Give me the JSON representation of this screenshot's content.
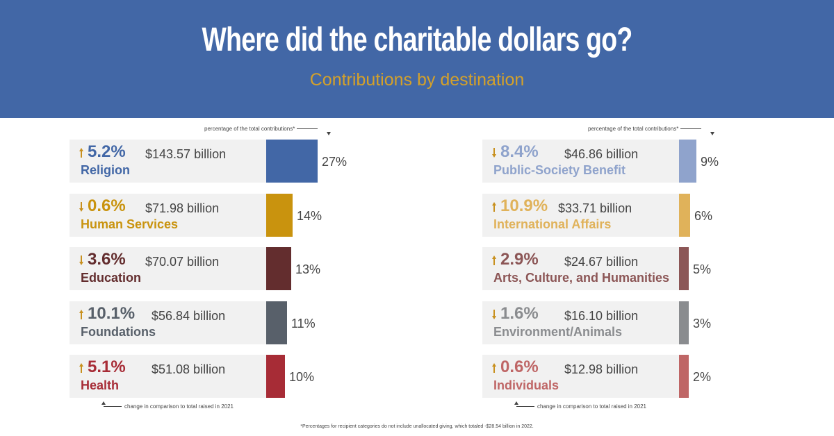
{
  "header": {
    "title": "Where did the charitable dollars go?",
    "subtitle": "Contributions by destination"
  },
  "notes": {
    "percentage_label": "percentage of the total contributions*",
    "change_label": "change in comparison to total raised in 2021",
    "footnote": "*Percentages for recipient categories do not include unallocated giving, which totaled -$28.54 billion in 2022."
  },
  "colors": {
    "banner": "#4267a6",
    "subtitle": "#d4a12a",
    "arrow": "#c8901e",
    "row_background": "#f1f1f1"
  },
  "chart_data": {
    "type": "bar",
    "title": "Where did the charitable dollars go?",
    "subtitle": "Contributions by destination",
    "unit": "percent of total contributions",
    "categories": [
      "Religion",
      "Human Services",
      "Education",
      "Foundations",
      "Health",
      "Public-Society Benefit",
      "International Affairs",
      "Arts, Culture, and Humanities",
      "Environment/Animals",
      "Individuals"
    ],
    "values": [
      27,
      14,
      13,
      11,
      10,
      9,
      6,
      5,
      3,
      2
    ],
    "items": [
      {
        "category": "Religion",
        "share": 27,
        "share_label": "27%",
        "change": "5.2%",
        "direction": "up",
        "amount": "$143.57 billion",
        "color": "#4267a6"
      },
      {
        "category": "Human Services",
        "share": 14,
        "share_label": "14%",
        "change": "0.6%",
        "direction": "down",
        "amount": "$71.98 billion",
        "color": "#c9930e"
      },
      {
        "category": "Education",
        "share": 13,
        "share_label": "13%",
        "change": "3.6%",
        "direction": "down",
        "amount": "$70.07 billion",
        "color": "#632d2e"
      },
      {
        "category": "Foundations",
        "share": 11,
        "share_label": "11%",
        "change": "10.1%",
        "direction": "up",
        "amount": "$56.84 billion",
        "color": "#58606a"
      },
      {
        "category": "Health",
        "share": 10,
        "share_label": "10%",
        "change": "5.1%",
        "direction": "up",
        "amount": "$51.08 billion",
        "color": "#a72c36"
      },
      {
        "category": "Public-Society Benefit",
        "share": 9,
        "share_label": "9%",
        "change": "8.4%",
        "direction": "down",
        "amount": "$46.86 billion",
        "color": "#8fa3cc"
      },
      {
        "category": "International Affairs",
        "share": 6,
        "share_label": "6%",
        "change": "10.9%",
        "direction": "up",
        "amount": "$33.71 billion",
        "color": "#e0b25a"
      },
      {
        "category": "Arts, Culture, and Humanities",
        "share": 5,
        "share_label": "5%",
        "change": "2.9%",
        "direction": "up",
        "amount": "$24.67 billion",
        "color": "#8c5656"
      },
      {
        "category": "Environment/Animals",
        "share": 3,
        "share_label": "3%",
        "change": "1.6%",
        "direction": "down",
        "amount": "$16.10 billion",
        "color": "#8a8c8f"
      },
      {
        "category": "Individuals",
        "share": 2,
        "share_label": "2%",
        "change": "0.6%",
        "direction": "up",
        "amount": "$12.98 billion",
        "color": "#bf6666"
      }
    ]
  }
}
